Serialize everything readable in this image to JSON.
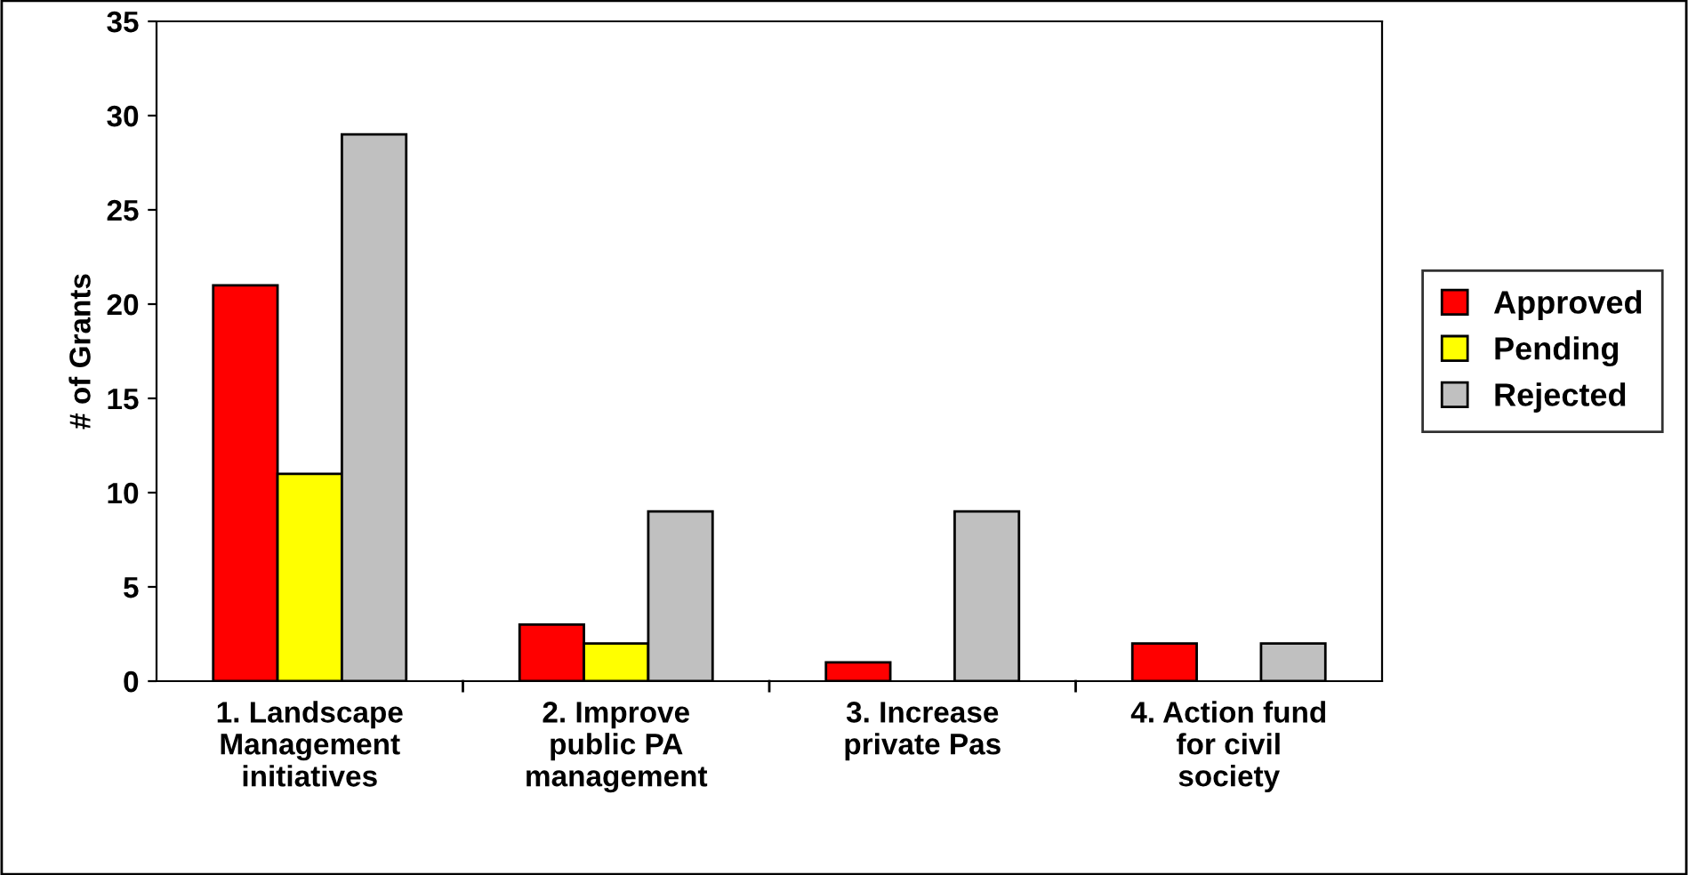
{
  "chart_data": {
    "type": "bar",
    "ylabel": "# of Grants",
    "categories": [
      "1. Landscape\nManagement\ninitiatives",
      "2. Improve\npublic PA\nmanagement",
      "3. Increase\nprivate Pas",
      "4. Action fund\nfor civil\nsociety"
    ],
    "series": [
      {
        "name": "Approved",
        "color": "#ff0000",
        "values": [
          21,
          3,
          1,
          2
        ]
      },
      {
        "name": "Pending",
        "color": "#ffff00",
        "values": [
          11,
          2,
          null,
          null
        ]
      },
      {
        "name": "Rejected",
        "color": "#c0c0c0",
        "values": [
          29,
          9,
          9,
          2
        ]
      }
    ],
    "ylim": [
      0,
      35
    ],
    "yticks": [
      0,
      5,
      10,
      15,
      20,
      25,
      30,
      35
    ],
    "grid": false,
    "legend": "right"
  }
}
